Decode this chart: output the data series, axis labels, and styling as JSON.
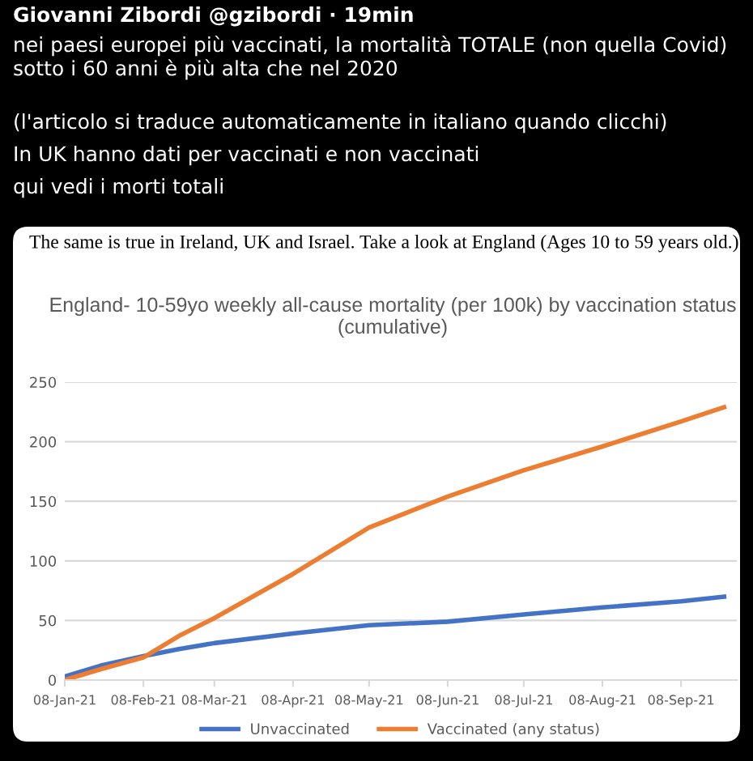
{
  "chart_data": {
    "type": "line",
    "title": "England- 10-59yo weekly all-cause mortality (per 100k) by vaccination status (cumulative)",
    "annotations": [
      "Giovanni Zibordi @gzibordi · 19min",
      "nei paesi europei più vaccinati, la mortalità TOTALE (non quella Covid) sotto i 60 anni è più alta che nel 2020",
      "(l'articolo si traduce automaticamente in italiano quando clicchi)",
      "In UK hanno dati per vaccinati e non vaccinati",
      "qui vedi i morti totali",
      "The same is true in Ireland, UK and Israel. Take a look at England (Ages 10 to 59 years old.)"
    ],
    "x": [
      "2021-01-08",
      "2021-01-22",
      "2021-02-08",
      "2021-02-22",
      "2021-03-08",
      "2021-04-08",
      "2021-05-08",
      "2021-06-08",
      "2021-07-08",
      "2021-08-08",
      "2021-09-08",
      "2021-09-25"
    ],
    "series": [
      {
        "name": "Unvaccinated",
        "color": "#4472c4",
        "values": [
          3,
          12,
          20,
          26,
          31,
          39,
          46,
          49,
          55,
          61,
          66,
          70
        ]
      },
      {
        "name": "Vaccinated (any status)",
        "color": "#ed7d31",
        "values": [
          0,
          9,
          19,
          37,
          52,
          89,
          128,
          154,
          176,
          196,
          217,
          229
        ]
      }
    ],
    "xlim": [
      "2021-01-08",
      "2021-09-30"
    ],
    "xticks": [
      {
        "value": "2021-01-08",
        "label": "08-Jan-21"
      },
      {
        "value": "2021-02-08",
        "label": "08-Feb-21"
      },
      {
        "value": "2021-03-08",
        "label": "08-Mar-21"
      },
      {
        "value": "2021-04-08",
        "label": "08-Apr-21"
      },
      {
        "value": "2021-05-08",
        "label": "08-May-21"
      },
      {
        "value": "2021-06-08",
        "label": "08-Jun-21"
      },
      {
        "value": "2021-07-08",
        "label": "08-Jul-21"
      },
      {
        "value": "2021-08-08",
        "label": "08-Aug-21"
      },
      {
        "value": "2021-09-08",
        "label": "08-Sep-21"
      }
    ],
    "ylim": [
      0,
      250
    ],
    "yticks": [
      0,
      50,
      100,
      150,
      200,
      250
    ],
    "grid": "y",
    "legend": "bottom",
    "marker": "none",
    "line_style": "solid"
  }
}
